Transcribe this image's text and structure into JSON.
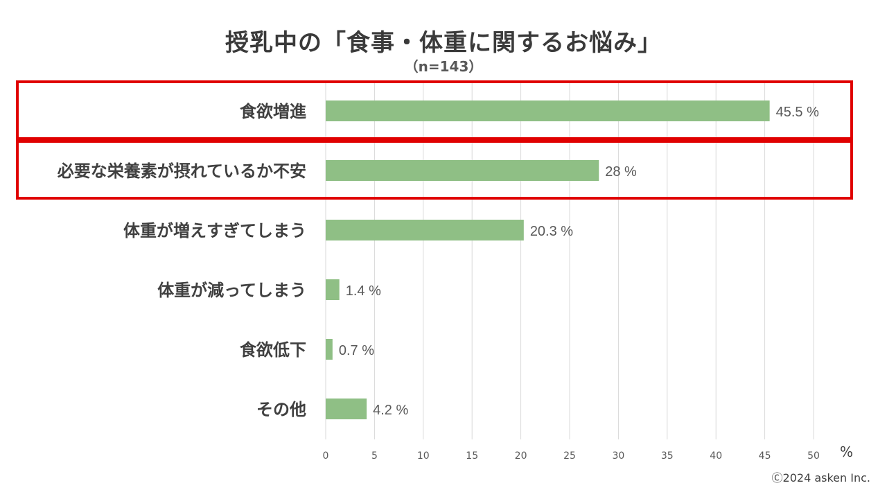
{
  "title": "授乳中の「食事・体重に関するお悩み」",
  "subtitle": "（n=143）",
  "copyright": "Ⓒ2024 asken Inc.",
  "colors": {
    "bar": "#8fbf85",
    "highlight": "#e00000",
    "grid": "#d9d9d9"
  },
  "chart_data": {
    "type": "bar",
    "orientation": "horizontal",
    "categories": [
      "食欲増進",
      "必要な栄養素が摂れているか不安",
      "体重が増えすぎてしまう",
      "体重が減ってしまう",
      "食欲低下",
      "その他"
    ],
    "values": [
      45.5,
      28,
      20.3,
      1.4,
      0.7,
      4.2
    ],
    "value_labels": [
      "45.5",
      "28",
      "20.3",
      "1.4",
      "0.7",
      "4.2"
    ],
    "value_suffix": "%",
    "xlim": [
      0,
      50
    ],
    "xticks": [
      "0",
      "5",
      "10",
      "15",
      "20",
      "25",
      "30",
      "35",
      "40",
      "45",
      "50"
    ],
    "x_unit": "%",
    "grid": true,
    "highlighted_categories": [
      "食欲増進",
      "必要な栄養素が摂れているか不安"
    ]
  }
}
